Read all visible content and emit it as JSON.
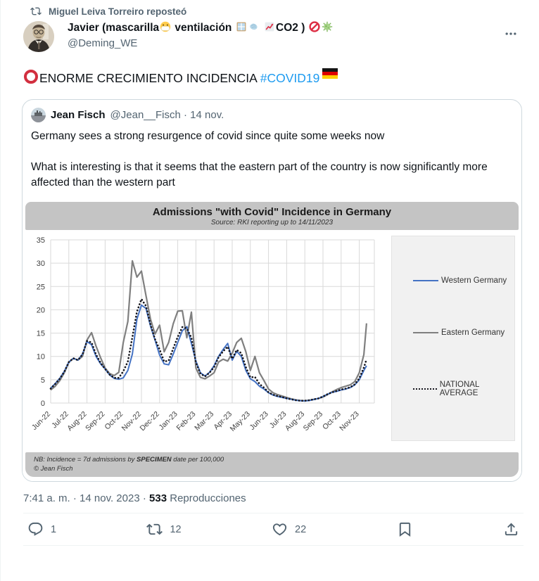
{
  "colors": {
    "accent_link": "#1d9bf0",
    "icon_gray": "#536471",
    "western_blue": "#4472c4",
    "eastern_gray": "#7f7f7f",
    "national_black": "#16161d",
    "grid": "#d9d9d9",
    "chart_bar_gray": "#c4c4c4",
    "legend_bg": "#f1f1f1",
    "card_border": "#cfd9de"
  },
  "icons": {
    "repost": "retweet-arrows",
    "more": "three-dots-horizontal",
    "reply": "speech-bubble-outline",
    "retweet": "retweet-arrows",
    "like": "heart-outline",
    "bookmark": "bookmark-outline",
    "share": "arrow-up-from-tray"
  },
  "repost_banner": {
    "text": "Miguel Leiva Torreiro reposteó"
  },
  "tweet": {
    "display_name_full": "Javier (mascarilla😷 ventilación 🪟💨 📈CO2 ) 🚫🦠",
    "name_segments": {
      "p1": "Javier (mascarilla",
      "p2": " ventilación ",
      "p3": "CO2 )"
    },
    "name_emojis": [
      "😷",
      "🪟",
      "💨",
      "📈",
      "🚫",
      "🦠"
    ],
    "handle": "@Deming_WE",
    "body": {
      "leading_emoji": "⭕",
      "text": "ENORME CRECIMIENTO INCIDENCIA ",
      "hashtag": "#COVID19",
      "trailing_emoji": "🇩🇪"
    }
  },
  "quoted": {
    "author": "Jean Fisch",
    "meta": "@Jean__Fisch · 14 nov.",
    "paragraph1": "Germany sees a strong resurgence of covid since quite some weeks now",
    "paragraph2": "What is interesting is that it seems that the eastern part of the country is now significantly more affected than the western part"
  },
  "chart_data": {
    "type": "line",
    "title": "Admissions \"with Covid\" Incidence in Germany",
    "subtitle": "Source: RKI reporting up to 14/11/2023",
    "note_parts": {
      "p1": "NB: Incidence = 7d admissions by ",
      "bold": "SPECIMEN",
      "p2": " date per 100,000"
    },
    "copyright": "© Jean Fisch",
    "categories": [
      "Jun-22",
      "Jul-22",
      "Aug-22",
      "Sep-22",
      "Oct-22",
      "Nov-22",
      "Dec-22",
      "Jan-23",
      "Feb-23",
      "Mar-23",
      "Apr-23",
      "May-23",
      "Jun-23",
      "Jul-23",
      "Aug-23",
      "Sep-23",
      "Oct-23",
      "Nov-23"
    ],
    "x_months_from_jun22": [
      0,
      0.25,
      0.5,
      0.75,
      1,
      1.25,
      1.5,
      1.75,
      2,
      2.25,
      2.5,
      2.75,
      3,
      3.25,
      3.5,
      3.75,
      4,
      4.25,
      4.5,
      4.75,
      5,
      5.25,
      5.5,
      5.75,
      6,
      6.25,
      6.5,
      6.75,
      7,
      7.25,
      7.5,
      7.75,
      8,
      8.25,
      8.5,
      8.75,
      9,
      9.25,
      9.5,
      9.75,
      10,
      10.25,
      10.5,
      10.75,
      11,
      11.25,
      11.5,
      11.75,
      12,
      12.25,
      12.5,
      12.75,
      13,
      13.25,
      13.5,
      13.75,
      14,
      14.25,
      14.5,
      14.75,
      15,
      15.25,
      15.5,
      15.75,
      16,
      16.25,
      16.5,
      16.75,
      17,
      17.25,
      17.4
    ],
    "series": [
      {
        "name": "Western Germany",
        "color": "#4472c4",
        "style": "solid",
        "values": [
          3.2,
          4.2,
          5.3,
          6.8,
          8.8,
          9.6,
          9.2,
          10.5,
          13.2,
          12.5,
          10,
          8.4,
          7.3,
          6,
          5.3,
          5.1,
          5.4,
          7,
          10.5,
          18,
          21,
          20.3,
          16.5,
          13.5,
          10.3,
          8.4,
          8.2,
          10.5,
          13,
          15.5,
          16.4,
          12.8,
          9,
          6.5,
          5.8,
          6.6,
          8,
          10,
          11.5,
          12.8,
          9.2,
          11.1,
          10,
          7,
          5.2,
          4.6,
          3.6,
          3,
          2.2,
          1.7,
          1.4,
          1.2,
          1,
          0.8,
          0.6,
          0.5,
          0.45,
          0.55,
          0.75,
          1,
          1.4,
          1.9,
          2.3,
          2.5,
          2.8,
          3,
          3.3,
          3.9,
          5,
          7,
          8
        ]
      },
      {
        "name": "Eastern Germany",
        "color": "#7f7f7f",
        "style": "solid",
        "values": [
          2.8,
          3.6,
          4.8,
          6.5,
          8.7,
          9.6,
          9.2,
          10,
          13.5,
          15.1,
          12.2,
          9.7,
          7.5,
          6.3,
          5.9,
          6.6,
          13,
          17.5,
          30.5,
          27,
          28.3,
          23,
          18,
          14.8,
          16.7,
          11,
          13,
          17,
          19.7,
          19.8,
          14,
          19.5,
          7.5,
          5.5,
          5.2,
          5.8,
          6.5,
          8.8,
          9.4,
          9,
          10.7,
          13,
          13.9,
          11,
          7,
          10,
          6.5,
          4.8,
          3,
          2.2,
          1.8,
          1.5,
          1.2,
          0.9,
          0.7,
          0.55,
          0.5,
          0.6,
          0.8,
          1,
          1.3,
          1.8,
          2.4,
          2.9,
          3.3,
          3.6,
          3.9,
          4.6,
          6.5,
          10.4,
          17.1
        ]
      },
      {
        "name": "NATIONAL AVERAGE",
        "color": "#16161d",
        "style": "dotted",
        "values": [
          3.1,
          4.1,
          5.2,
          6.7,
          8.8,
          9.6,
          9.2,
          10.4,
          13.3,
          13,
          10.4,
          8.6,
          7.3,
          6.1,
          5.4,
          5.4,
          6.8,
          8.9,
          14.1,
          19.6,
          22.3,
          20.8,
          16.8,
          13.7,
          11.5,
          8.9,
          9.1,
          11.7,
          14.2,
          16.3,
          16,
          14,
          8.7,
          6.3,
          5.7,
          6.5,
          7.7,
          9.8,
          11.1,
          12.1,
          9.5,
          11.4,
          10.7,
          7.7,
          5.5,
          5.6,
          4.1,
          3.3,
          2.3,
          1.8,
          1.5,
          1.3,
          1,
          0.8,
          0.6,
          0.5,
          0.5,
          0.6,
          0.8,
          1,
          1.4,
          1.9,
          2.3,
          2.6,
          2.9,
          3.1,
          3.4,
          4,
          5.3,
          7.6,
          9.4
        ]
      }
    ],
    "ylim": [
      0,
      35
    ],
    "ytick_step": 5,
    "grid": true,
    "legend_position": "right"
  },
  "footer": {
    "time": "7:41 a. m.",
    "sep1": " · ",
    "date": "14 nov. 2023",
    "sep2": " · ",
    "views_count": "533",
    "views_label": " Reproducciones"
  },
  "actions": {
    "reply_count": "1",
    "retweet_count": "12",
    "like_count": "22"
  }
}
